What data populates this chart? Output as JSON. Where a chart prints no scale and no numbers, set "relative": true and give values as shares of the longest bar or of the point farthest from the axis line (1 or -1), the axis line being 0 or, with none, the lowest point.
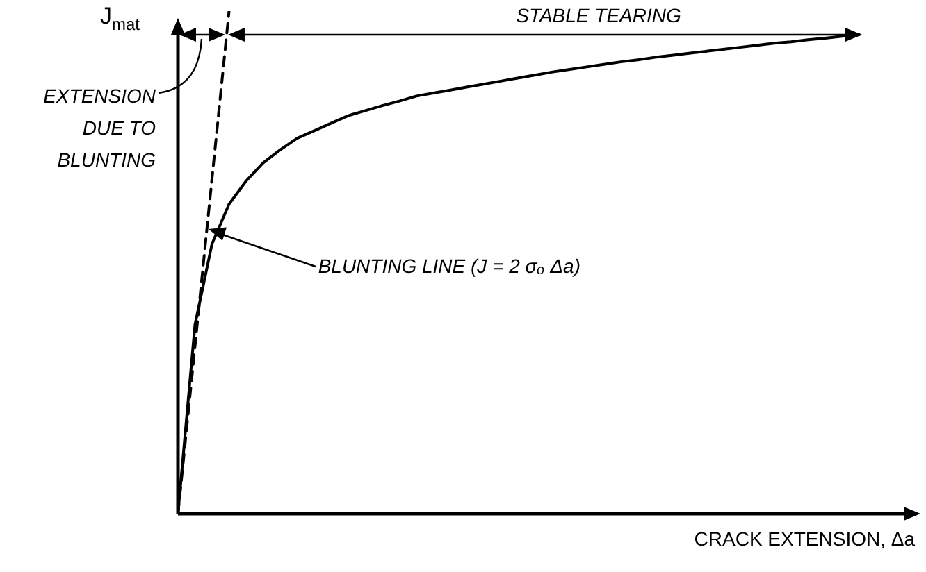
{
  "chart_data": {
    "type": "line",
    "relative": true,
    "xlabel": "CRACK EXTENSION, Δa",
    "ylabel": "J$_{mat}$",
    "marker": "none",
    "categories": [
      null,
      null,
      null,
      null,
      null,
      null,
      null,
      null,
      null,
      null,
      null,
      null,
      null,
      null,
      null,
      null,
      null,
      null,
      null,
      null,
      null,
      null,
      null,
      null,
      null,
      null,
      null,
      null,
      null,
      null,
      null,
      null,
      null,
      null,
      null,
      null,
      null,
      null,
      null,
      null,
      null
    ],
    "series": [
      {
        "color": "#000000",
        "line_style": "solid",
        "values": [
          0,
          0.376,
          0.537,
          0.616,
          0.662,
          0.698,
          0.724,
          0.747,
          0.762,
          0.777,
          0.792,
          0.802,
          0.812,
          0.821,
          0.831,
          0.837,
          0.843,
          0.849,
          0.855,
          0.861,
          0.867,
          0.873,
          0.879,
          0.884,
          0.889,
          0.894,
          0.899,
          0.903,
          0.908,
          0.912,
          0.916,
          0.92,
          0.924,
          0.928,
          0.932,
          0.936,
          0.939,
          0.943,
          0.946,
          0.95,
          0.953
        ]
      },
      {
        "color": "#000000",
        "line_style": "dashed",
        "values": [
          0,
          0.333,
          0.667,
          1,
          null,
          null,
          null,
          null,
          null,
          null,
          null,
          null,
          null,
          null,
          null,
          null,
          null,
          null,
          null,
          null,
          null,
          null,
          null,
          null,
          null,
          null,
          null,
          null,
          null,
          null,
          null,
          null,
          null,
          null,
          null,
          null,
          null,
          null,
          null,
          null,
          null
        ]
      }
    ],
    "annotations": [
      "EXTENSION DUE TO BLUNTING",
      "STABLE TEARING",
      "BLUNTING LINE (J = 2 σₒ Δa)"
    ]
  }
}
